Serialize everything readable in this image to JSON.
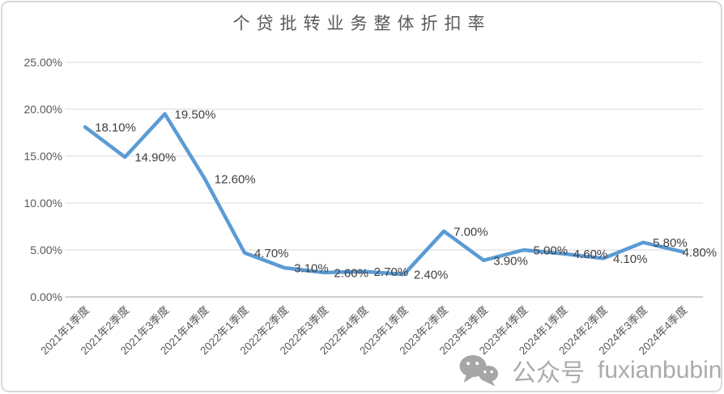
{
  "page": {
    "watermark": {
      "icon": "wechat-icon",
      "label": "公众号",
      "handle": "fuxianbubin"
    }
  },
  "chart_data": {
    "type": "line",
    "title": "个贷批转业务整体折扣率",
    "categories": [
      "2021年1季度",
      "2021年2季度",
      "2021年3季度",
      "2021年4季度",
      "2022年1季度",
      "2022年2季度",
      "2022年3季度",
      "2022年4季度",
      "2023年1季度",
      "2023年2季度",
      "2023年3季度",
      "2023年4季度",
      "2024年1季度",
      "2024年2季度",
      "2024年3季度",
      "2024年4季度"
    ],
    "values": [
      18.1,
      14.9,
      19.5,
      12.6,
      4.7,
      3.1,
      2.6,
      2.7,
      2.4,
      7.0,
      3.9,
      5.0,
      4.6,
      4.1,
      5.8,
      4.8
    ],
    "data_labels": [
      "18.10%",
      "14.90%",
      "19.50%",
      "12.60%",
      "4.70%",
      "3.10%",
      "2.60%",
      "2.70%",
      "2.40%",
      "7.00%",
      "3.90%",
      "5.00%",
      "4.60%",
      "4.10%",
      "5.80%",
      "4.80%"
    ],
    "xlabel": "",
    "ylabel": "",
    "ylim": [
      0,
      25
    ],
    "y_tick_values": [
      0,
      5,
      10,
      15,
      20,
      25
    ],
    "y_tick_labels": [
      "0.00%",
      "5.00%",
      "10.00%",
      "15.00%",
      "20.00%",
      "25.00%"
    ],
    "grid": true,
    "legend_position": "none",
    "line_color": "#5B9BD5",
    "gridline_color": "#D9D9D9",
    "axis_line_color": "#BFBFBF",
    "axis_text_color": "#595959",
    "data_label_color": "#404040"
  }
}
